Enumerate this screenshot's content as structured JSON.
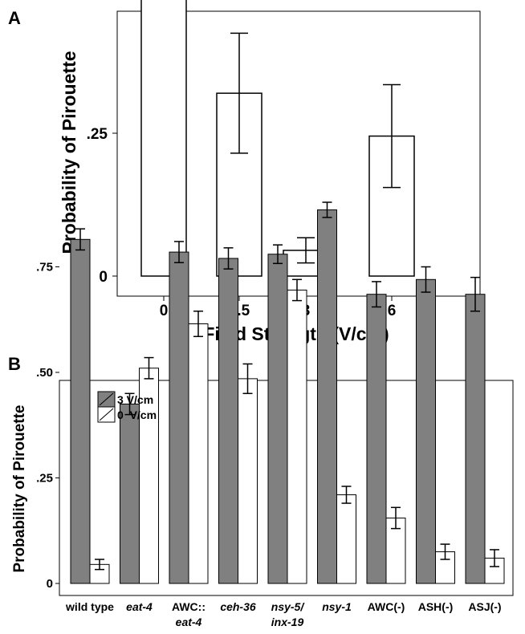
{
  "panels": {
    "a_letter": "A",
    "b_letter": "B"
  },
  "colors": {
    "bar_fill_a": "#ffffff",
    "bar_3vcm": "#808080",
    "bar_0vcm": "#ffffff",
    "stroke": "#000000"
  },
  "chart_data": [
    {
      "type": "bar",
      "panel": "A",
      "xlabel": "Field Strength (V/cm)",
      "ylabel": "Probability of Pirouette",
      "ylim": [
        0,
        0.9
      ],
      "yticks": [
        {
          "value": 0,
          "label": "0"
        },
        {
          "value": 0.25,
          "label": ".25"
        },
        {
          "value": 0.5,
          "label": ".50"
        },
        {
          "value": 0.75,
          "label": ".75"
        }
      ],
      "categories": [
        "0",
        "1.5",
        "3",
        "6"
      ],
      "values": [
        0.83,
        0.32,
        0.045,
        0.245
      ],
      "errors": [
        0.075,
        0.105,
        0.022,
        0.09
      ],
      "grid": false,
      "legend": "none"
    },
    {
      "type": "bar",
      "panel": "B",
      "xlabel": "",
      "ylabel": "Probability of Pirouette",
      "ylim": [
        0,
        0.93
      ],
      "yticks": [
        {
          "value": 0,
          "label": "0"
        },
        {
          "value": 0.25,
          "label": ".25"
        },
        {
          "value": 0.5,
          "label": ".50"
        },
        {
          "value": 0.75,
          "label": ".75"
        }
      ],
      "categories": [
        {
          "lines": [
            "wild type"
          ],
          "italic": false
        },
        {
          "lines": [
            "eat-4"
          ],
          "italic": true
        },
        {
          "lines": [
            "AWC::",
            "eat-4"
          ],
          "italic": [
            false,
            true
          ]
        },
        {
          "lines": [
            "ceh-36"
          ],
          "italic": true
        },
        {
          "lines": [
            "nsy-5/",
            "inx-19"
          ],
          "italic": true
        },
        {
          "lines": [
            "nsy-1"
          ],
          "italic": true
        },
        {
          "lines": [
            "AWC(-)"
          ],
          "italic": false
        },
        {
          "lines": [
            "ASH(-)"
          ],
          "italic": false
        },
        {
          "lines": [
            "ASJ(-)"
          ],
          "italic": false
        }
      ],
      "series": [
        {
          "name": "3 V/cm",
          "values": [
            0.815,
            0.425,
            0.785,
            0.77,
            0.78,
            0.885,
            0.685,
            0.72,
            0.685
          ],
          "errors": [
            0.025,
            0.025,
            0.025,
            0.025,
            0.022,
            0.018,
            0.03,
            0.03,
            0.04
          ]
        },
        {
          "name": "0  V/cm",
          "values": [
            0.045,
            0.51,
            0.615,
            0.485,
            0.695,
            0.21,
            0.155,
            0.075,
            0.06
          ],
          "errors": [
            0.012,
            0.025,
            0.03,
            0.035,
            0.025,
            0.02,
            0.025,
            0.018,
            0.02
          ]
        }
      ],
      "grid": false,
      "legend": "top-left"
    }
  ]
}
